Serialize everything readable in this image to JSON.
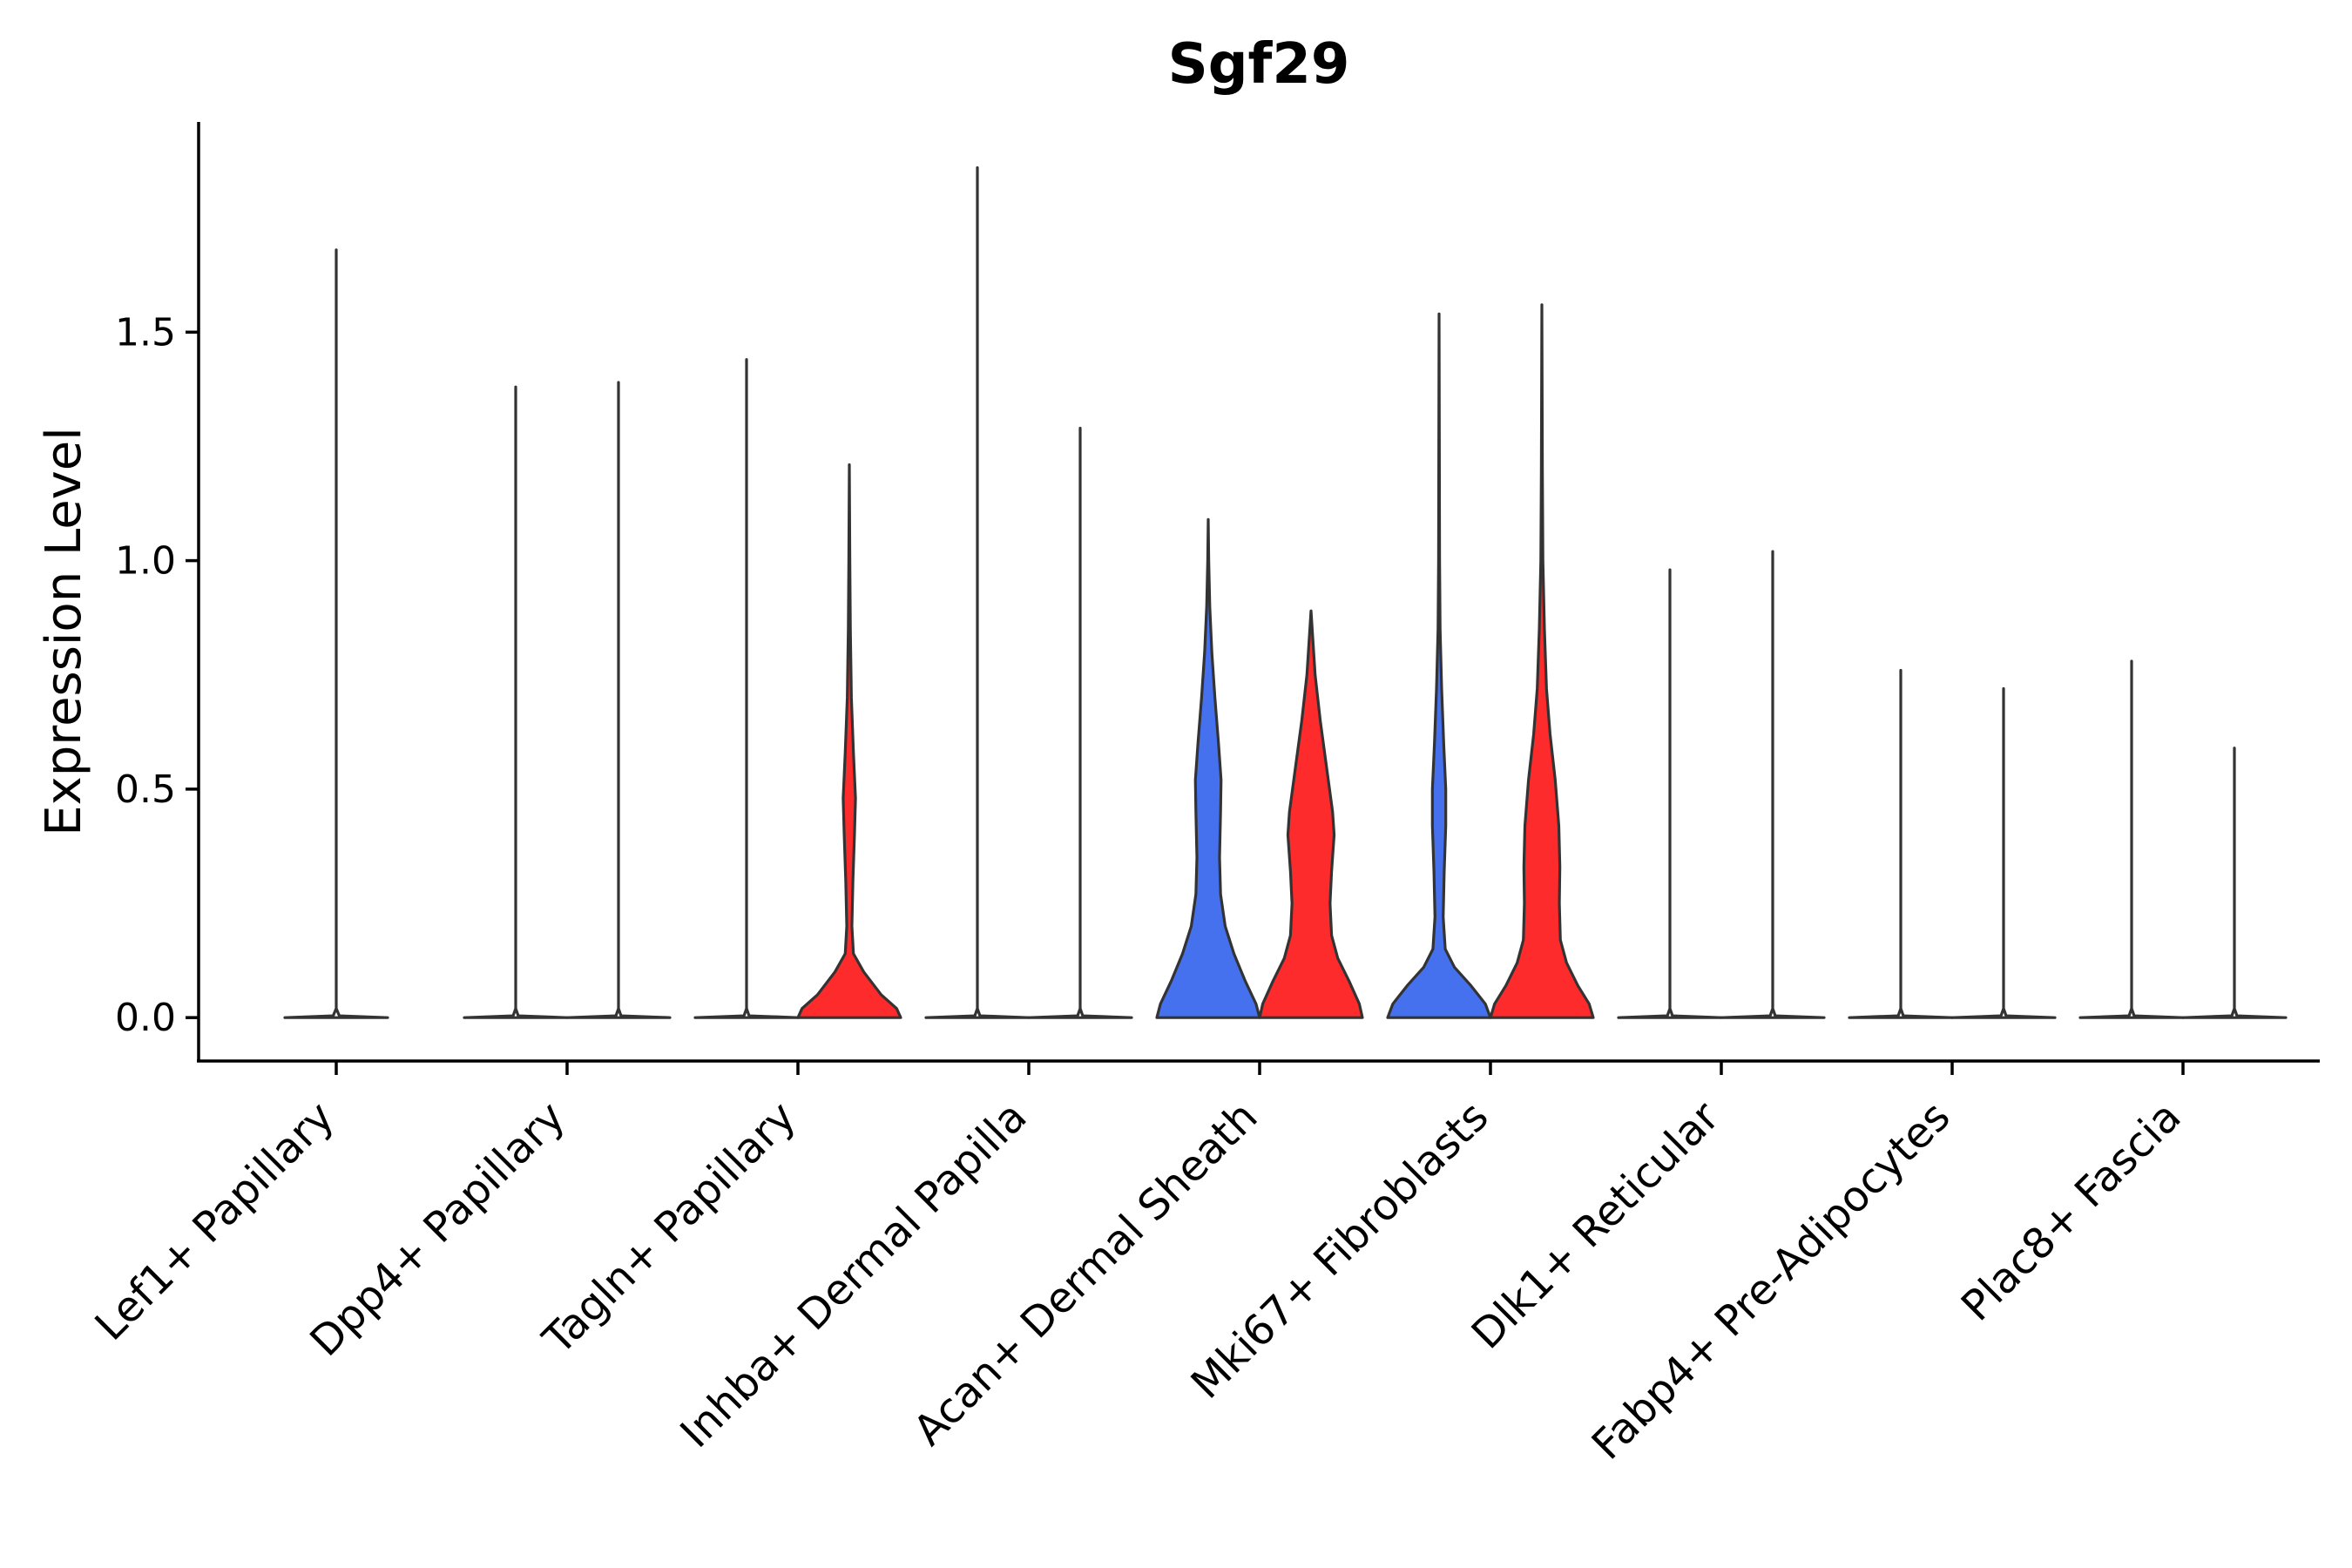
{
  "chart_data": {
    "type": "violin",
    "title": "Sgf29",
    "xlabel": "",
    "ylabel": "Expression Level",
    "ylim": [
      -0.095,
      1.96
    ],
    "yticks": [
      0.0,
      0.5,
      1.0,
      1.5
    ],
    "ytick_labels": [
      "0.0",
      "0.5",
      "1.0",
      "1.5"
    ],
    "grid": false,
    "legend": "none",
    "colors": {
      "blue": "#4571EE",
      "red": "#FD2B2B",
      "white": "#FFFFFF"
    },
    "categories": [
      "Lef1+ Papillary",
      "Dpp4+ Papillary",
      "Tagln+ Papillary",
      "Inhba+ Dermal Papilla",
      "Acan+ Dermal Sheath",
      "Mki67+ Fibroblasts",
      "Dlk1+ Reticular",
      "Fabp4+ Pre-Adipocytes",
      "Plac8+ Fascia"
    ],
    "groups": [
      {
        "category": "Lef1+ Papillary",
        "violins": [
          {
            "color": "white",
            "max": 1.68,
            "profile": [
              [
                0,
                1
              ],
              [
                0.004,
                0.06
              ],
              [
                0.02,
                0
              ],
              [
                1.68,
                0
              ]
            ]
          }
        ]
      },
      {
        "category": "Dpp4+ Papillary",
        "violins": [
          {
            "color": "white",
            "max": 1.38,
            "profile": [
              [
                0,
                1
              ],
              [
                0.004,
                0.05
              ],
              [
                0.02,
                0
              ],
              [
                1.38,
                0
              ]
            ]
          },
          {
            "color": "white",
            "max": 1.39,
            "profile": [
              [
                0,
                1
              ],
              [
                0.004,
                0.05
              ],
              [
                0.02,
                0
              ],
              [
                1.39,
                0
              ]
            ]
          }
        ]
      },
      {
        "category": "Tagln+ Papillary",
        "violins": [
          {
            "color": "white",
            "max": 1.44,
            "profile": [
              [
                0,
                1
              ],
              [
                0.004,
                0.05
              ],
              [
                0.02,
                0
              ],
              [
                1.44,
                0
              ]
            ]
          },
          {
            "color": "red",
            "max": 1.21,
            "profile": [
              [
                0,
                1
              ],
              [
                0.02,
                0.92
              ],
              [
                0.05,
                0.62
              ],
              [
                0.1,
                0.28
              ],
              [
                0.14,
                0.08
              ],
              [
                0.2,
                0.05
              ],
              [
                0.3,
                0.07
              ],
              [
                0.4,
                0.1
              ],
              [
                0.48,
                0.12
              ],
              [
                0.58,
                0.08
              ],
              [
                0.7,
                0.04
              ],
              [
                0.85,
                0.02
              ],
              [
                1.0,
                0.01
              ],
              [
                1.21,
                0
              ]
            ]
          }
        ]
      },
      {
        "category": "Inhba+ Dermal Papilla",
        "violins": [
          {
            "color": "white",
            "max": 1.86,
            "profile": [
              [
                0,
                1
              ],
              [
                0.004,
                0.05
              ],
              [
                0.02,
                0
              ],
              [
                1.86,
                0
              ]
            ]
          },
          {
            "color": "white",
            "max": 1.29,
            "profile": [
              [
                0,
                1
              ],
              [
                0.004,
                0.05
              ],
              [
                0.02,
                0
              ],
              [
                1.29,
                0
              ]
            ]
          }
        ]
      },
      {
        "category": "Acan+ Dermal Sheath",
        "violins": [
          {
            "color": "blue",
            "max": 1.09,
            "profile": [
              [
                0,
                1
              ],
              [
                0.03,
                0.93
              ],
              [
                0.08,
                0.72
              ],
              [
                0.14,
                0.5
              ],
              [
                0.2,
                0.33
              ],
              [
                0.27,
                0.24
              ],
              [
                0.35,
                0.22
              ],
              [
                0.45,
                0.24
              ],
              [
                0.52,
                0.25
              ],
              [
                0.6,
                0.2
              ],
              [
                0.7,
                0.13
              ],
              [
                0.8,
                0.07
              ],
              [
                0.9,
                0.03
              ],
              [
                1.0,
                0.01
              ],
              [
                1.09,
                0
              ]
            ]
          },
          {
            "color": "red",
            "max": 0.89,
            "profile": [
              [
                0,
                1
              ],
              [
                0.03,
                0.94
              ],
              [
                0.08,
                0.74
              ],
              [
                0.13,
                0.52
              ],
              [
                0.18,
                0.4
              ],
              [
                0.25,
                0.37
              ],
              [
                0.32,
                0.4
              ],
              [
                0.4,
                0.45
              ],
              [
                0.45,
                0.42
              ],
              [
                0.55,
                0.3
              ],
              [
                0.65,
                0.18
              ],
              [
                0.75,
                0.08
              ],
              [
                0.82,
                0.04
              ],
              [
                0.89,
                0
              ]
            ]
          }
        ]
      },
      {
        "category": "Mki67+ Fibroblasts",
        "violins": [
          {
            "color": "blue",
            "max": 1.54,
            "profile": [
              [
                0,
                1
              ],
              [
                0.03,
                0.9
              ],
              [
                0.07,
                0.62
              ],
              [
                0.11,
                0.3
              ],
              [
                0.15,
                0.12
              ],
              [
                0.22,
                0.08
              ],
              [
                0.32,
                0.1
              ],
              [
                0.42,
                0.13
              ],
              [
                0.5,
                0.13
              ],
              [
                0.6,
                0.09
              ],
              [
                0.72,
                0.05
              ],
              [
                0.85,
                0.02
              ],
              [
                1.0,
                0.01
              ],
              [
                1.54,
                0
              ]
            ]
          },
          {
            "color": "red",
            "max": 1.56,
            "profile": [
              [
                0,
                1
              ],
              [
                0.03,
                0.92
              ],
              [
                0.07,
                0.7
              ],
              [
                0.12,
                0.48
              ],
              [
                0.17,
                0.36
              ],
              [
                0.25,
                0.34
              ],
              [
                0.33,
                0.35
              ],
              [
                0.42,
                0.33
              ],
              [
                0.52,
                0.26
              ],
              [
                0.62,
                0.16
              ],
              [
                0.72,
                0.09
              ],
              [
                0.85,
                0.05
              ],
              [
                1.0,
                0.02
              ],
              [
                1.2,
                0.01
              ],
              [
                1.56,
                0
              ]
            ]
          }
        ]
      },
      {
        "category": "Dlk1+ Reticular",
        "violins": [
          {
            "color": "white",
            "max": 0.98,
            "profile": [
              [
                0,
                1
              ],
              [
                0.004,
                0.05
              ],
              [
                0.02,
                0
              ],
              [
                0.98,
                0
              ]
            ]
          },
          {
            "color": "white",
            "max": 1.02,
            "profile": [
              [
                0,
                1
              ],
              [
                0.004,
                0.05
              ],
              [
                0.02,
                0
              ],
              [
                1.02,
                0
              ]
            ]
          }
        ]
      },
      {
        "category": "Fabp4+ Pre-Adipocytes",
        "violins": [
          {
            "color": "white",
            "max": 0.76,
            "profile": [
              [
                0,
                1
              ],
              [
                0.004,
                0.05
              ],
              [
                0.02,
                0
              ],
              [
                0.76,
                0
              ]
            ]
          },
          {
            "color": "white",
            "max": 0.72,
            "profile": [
              [
                0,
                1
              ],
              [
                0.004,
                0.05
              ],
              [
                0.02,
                0
              ],
              [
                0.72,
                0
              ]
            ]
          }
        ]
      },
      {
        "category": "Plac8+ Fascia",
        "violins": [
          {
            "color": "white",
            "max": 0.78,
            "profile": [
              [
                0,
                1
              ],
              [
                0.004,
                0.05
              ],
              [
                0.02,
                0
              ],
              [
                0.78,
                0
              ]
            ]
          },
          {
            "color": "white",
            "max": 0.59,
            "profile": [
              [
                0,
                1
              ],
              [
                0.004,
                0.05
              ],
              [
                0.02,
                0
              ],
              [
                0.59,
                0
              ]
            ]
          }
        ]
      }
    ]
  }
}
